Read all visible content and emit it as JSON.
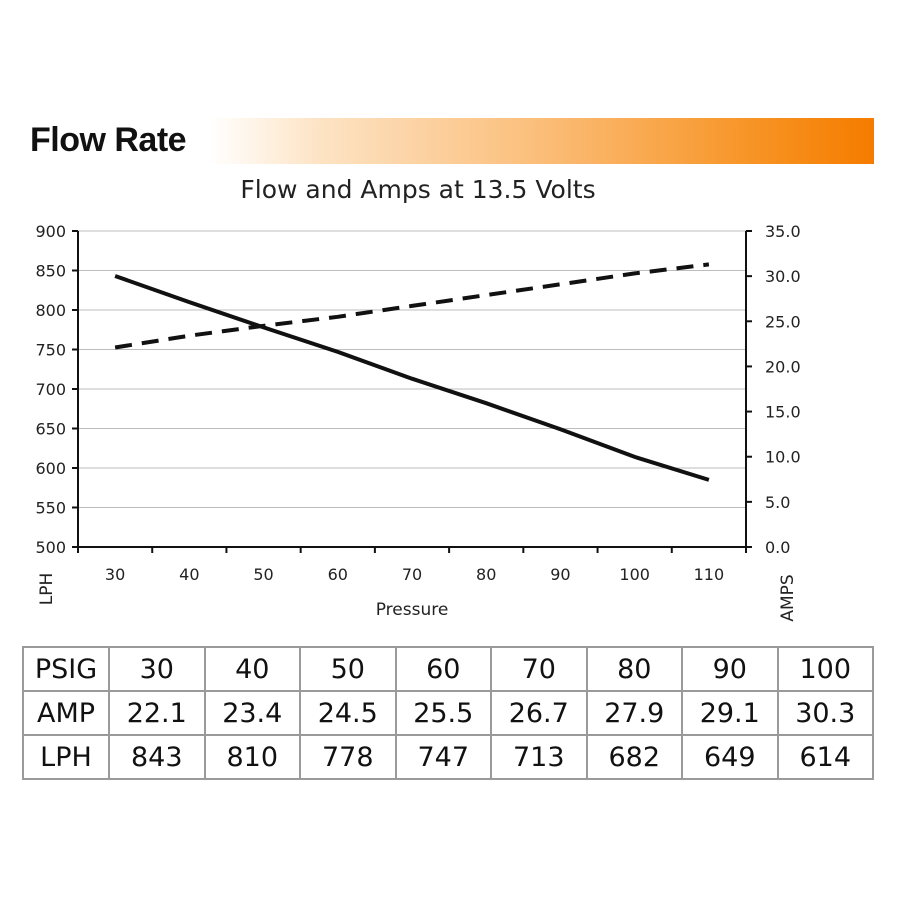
{
  "header": {
    "title": "Flow Rate"
  },
  "colors": {
    "accent": "#f57c00",
    "line": "#111111",
    "grid": "#bdbdbd"
  },
  "chart_data": {
    "type": "line",
    "title": "Flow and Amps at 13.5 Volts",
    "xlabel": "Pressure",
    "ylabel": "LPH",
    "y2label": "AMPS",
    "x": [
      30,
      40,
      50,
      60,
      70,
      80,
      90,
      100,
      110
    ],
    "xticks": [
      "30",
      "40",
      "50",
      "60",
      "70",
      "80",
      "90",
      "100",
      "110"
    ],
    "ylim": [
      500,
      900
    ],
    "yticks": [
      "500",
      "550",
      "600",
      "650",
      "700",
      "750",
      "800",
      "850",
      "900"
    ],
    "y2lim": [
      0,
      35
    ],
    "y2ticks": [
      "0.0",
      "5.0",
      "10.0",
      "15.0",
      "20.0",
      "25.0",
      "30.0",
      "35.0"
    ],
    "grid": true,
    "series": [
      {
        "axis": "left",
        "style": "solid",
        "values": [
          843,
          810,
          778,
          747,
          713,
          682,
          649,
          614,
          585
        ]
      },
      {
        "axis": "right",
        "style": "dashed",
        "values": [
          22.1,
          23.4,
          24.5,
          25.5,
          26.7,
          27.9,
          29.1,
          30.3,
          31.3
        ]
      }
    ]
  },
  "table": {
    "rows": [
      {
        "label": "PSIG",
        "values": [
          "30",
          "40",
          "50",
          "60",
          "70",
          "80",
          "90",
          "100"
        ]
      },
      {
        "label": "AMP",
        "values": [
          "22.1",
          "23.4",
          "24.5",
          "25.5",
          "26.7",
          "27.9",
          "29.1",
          "30.3"
        ]
      },
      {
        "label": "LPH",
        "values": [
          "843",
          "810",
          "778",
          "747",
          "713",
          "682",
          "649",
          "614"
        ]
      }
    ]
  }
}
